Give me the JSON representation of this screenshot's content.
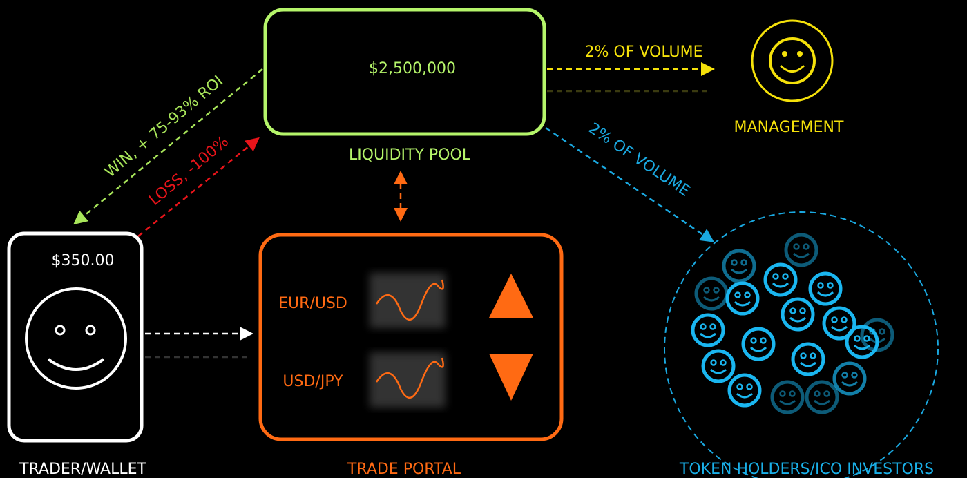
{
  "liquidity_pool": {
    "amount": "$2,500,000",
    "label": "LIQUIDITY POOL"
  },
  "management": {
    "label": "MANAGEMENT"
  },
  "trader": {
    "balance": "$350.00",
    "label": "TRADER/WALLET"
  },
  "trade_portal": {
    "label": "TRADE PORTAL",
    "pairs": [
      "EUR/USD",
      "USD/JPY"
    ]
  },
  "token_holders": {
    "label": "TOKEN HOLDERS/ICO INVESTORS"
  },
  "edges": {
    "win": "WIN, + 75-93% ROI",
    "loss": "LOSS, -100%",
    "management_fee": "2% OF VOLUME",
    "token_fee": "2% OF VOLUME"
  }
}
